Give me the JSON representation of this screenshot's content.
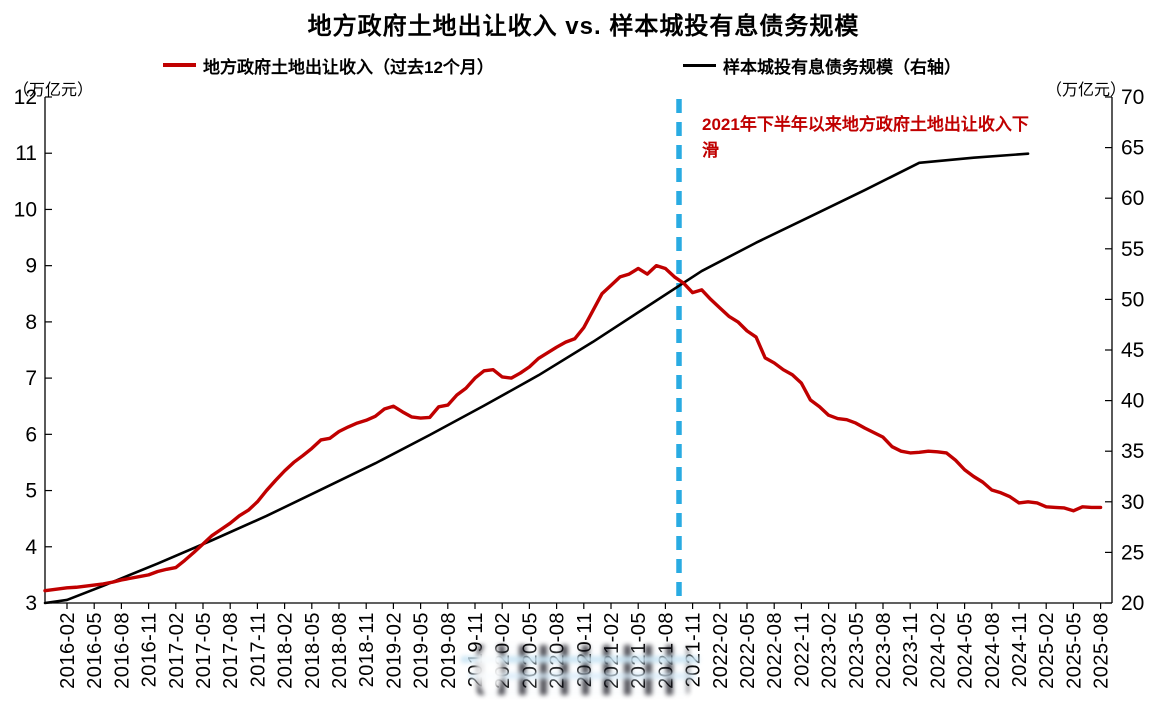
{
  "title": "地方政府土地出让收入 vs. 样本城投有息债务规模",
  "legend": [
    {
      "label": "地方政府土地出让收入（过去12个月）",
      "color": "#c00000"
    },
    {
      "label": "样本城投有息债务规模（右轴）",
      "color": "#000000"
    }
  ],
  "annotation": {
    "text": "2021年下半年以来地方政府土地出让收入下滑",
    "color": "#c00000"
  },
  "chart_data": {
    "type": "line",
    "title": "地方政府土地出让收入 vs. 样本城投有息债务规模",
    "x_start": "2016-02",
    "x_end": "2025-08",
    "x_tick_labels": [
      "2016-02",
      "2016-05",
      "2016-08",
      "2016-11",
      "2017-02",
      "2017-05",
      "2017-08",
      "2017-11",
      "2018-02",
      "2018-05",
      "2018-08",
      "2018-11",
      "2019-02",
      "2019-05",
      "2019-08",
      "2019-11",
      "2020-02",
      "2020-05",
      "2020-08",
      "2020-11",
      "2021-02",
      "2021-05",
      "2021-08",
      "2021-11",
      "2022-02",
      "2022-05",
      "2022-08",
      "2022-11",
      "2023-02",
      "2023-05",
      "2023-08",
      "2023-11",
      "2024-02",
      "2024-05",
      "2024-08",
      "2024-11",
      "2025-02",
      "2025-05",
      "2025-08"
    ],
    "left_axis": {
      "unit": "（万亿元）",
      "min": 3,
      "max": 12,
      "ticks": [
        3,
        4,
        5,
        6,
        7,
        8,
        9,
        10,
        11,
        12
      ]
    },
    "right_axis": {
      "unit": "（万亿元）",
      "min": 20,
      "max": 70,
      "ticks": [
        20,
        25,
        30,
        35,
        40,
        45,
        50,
        55,
        60,
        65,
        70
      ]
    },
    "grid": false,
    "legend_position": "top",
    "series": [
      {
        "name": "地方政府土地出让收入（过去12个月）",
        "axis": "left",
        "color": "#c00000",
        "interval": "monthly",
        "lead_value": 3.22,
        "values": [
          3.27,
          3.28,
          3.3,
          3.32,
          3.34,
          3.37,
          3.41,
          3.44,
          3.47,
          3.5,
          3.56,
          3.6,
          3.63,
          3.76,
          3.9,
          4.05,
          4.2,
          4.31,
          4.42,
          4.55,
          4.65,
          4.8,
          5.0,
          5.18,
          5.35,
          5.5,
          5.62,
          5.75,
          5.9,
          5.93,
          6.05,
          6.13,
          6.2,
          6.25,
          6.32,
          6.45,
          6.5,
          6.4,
          6.31,
          6.29,
          6.3,
          6.49,
          6.52,
          6.7,
          6.82,
          7.0,
          7.13,
          7.15,
          7.02,
          7.0,
          7.09,
          7.2,
          7.35,
          7.45,
          7.55,
          7.64,
          7.7,
          7.9,
          8.2,
          8.5,
          8.65,
          8.8,
          8.85,
          8.95,
          8.85,
          9.0,
          8.95,
          8.8,
          8.69,
          8.52,
          8.57,
          8.4,
          8.25,
          8.1,
          8.0,
          7.84,
          7.73,
          7.36,
          7.27,
          7.15,
          7.06,
          6.91,
          6.61,
          6.49,
          6.34,
          6.28,
          6.26,
          6.2,
          6.11,
          6.03,
          5.95,
          5.78,
          5.7,
          5.67,
          5.68,
          5.7,
          5.69,
          5.67,
          5.54,
          5.37,
          5.25,
          5.15,
          5.01,
          4.96,
          4.89,
          4.78,
          4.8,
          4.78,
          4.71,
          4.7,
          4.69,
          4.64,
          4.71,
          4.7,
          4.7
        ]
      },
      {
        "name": "样本城投有息债务规模（右轴）",
        "axis": "right",
        "color": "#000000",
        "interval": "semiannual",
        "lead_value": 20.0,
        "points": [
          [
            "2016-02",
            20.3
          ],
          [
            "2016-06",
            21.7
          ],
          [
            "2016-12",
            23.9
          ],
          [
            "2017-06",
            26.2
          ],
          [
            "2017-12",
            28.6
          ],
          [
            "2018-06",
            31.2
          ],
          [
            "2018-12",
            33.8
          ],
          [
            "2019-06",
            36.6
          ],
          [
            "2019-12",
            39.5
          ],
          [
            "2020-06",
            42.5
          ],
          [
            "2020-12",
            45.8
          ],
          [
            "2021-06",
            49.3
          ],
          [
            "2021-12",
            52.8
          ],
          [
            "2022-06",
            55.6
          ],
          [
            "2022-12",
            58.2
          ],
          [
            "2023-06",
            60.8
          ],
          [
            "2023-12",
            63.5
          ],
          [
            "2024-06",
            64.0
          ],
          [
            "2024-12",
            64.4
          ]
        ]
      }
    ],
    "event_line": {
      "month_index": 67.5,
      "near_month": "2021-09",
      "color": "#29abe2",
      "style": "dashed"
    }
  }
}
